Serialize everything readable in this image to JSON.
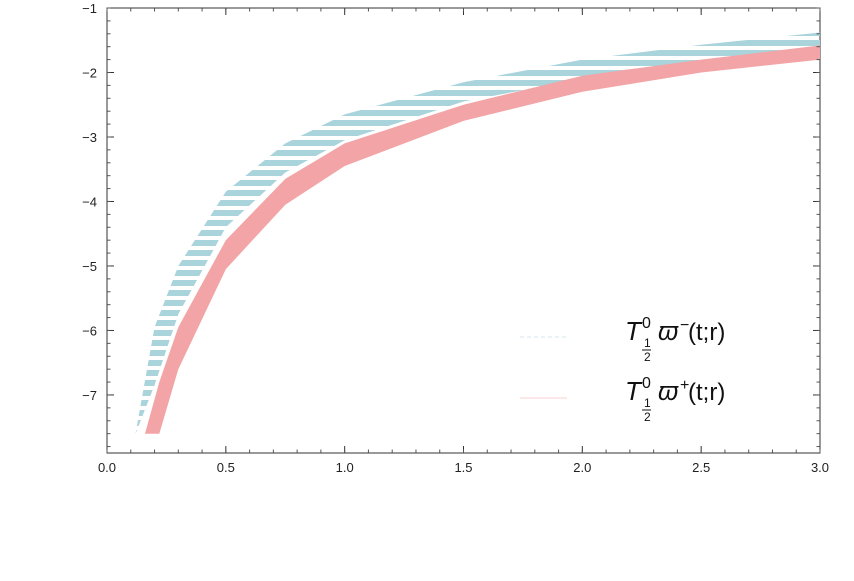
{
  "chart_data": {
    "type": "area",
    "title": "",
    "xlabel": "",
    "ylabel": "",
    "xlim": [
      0,
      3.0
    ],
    "ylim": [
      -7.9,
      -1.0
    ],
    "grid": false,
    "legend_position": "bottom-right",
    "x_ticks": [
      "0.0",
      "0.5",
      "1.0",
      "1.5",
      "2.0",
      "2.5",
      "3.0"
    ],
    "y_ticks": [
      "-1",
      "-2",
      "-3",
      "-4",
      "-5",
      "-6",
      "-7"
    ],
    "series": [
      {
        "legend_main": "T",
        "legend_sup": "0",
        "legend_sub_num": "1",
        "legend_sub_den": "2",
        "legend_omega": "ϖ",
        "legend_omega_sup": "−",
        "legend_args": "(t;r)",
        "color": "#a9d4dc",
        "style": "hatched",
        "band": [
          {
            "x": 0.12,
            "lower": -7.6,
            "upper": -7.6
          },
          {
            "x": 0.2,
            "lower": -6.85,
            "upper": -5.95
          },
          {
            "x": 0.3,
            "lower": -5.75,
            "upper": -5.0
          },
          {
            "x": 0.5,
            "lower": -4.4,
            "upper": -3.85
          },
          {
            "x": 0.75,
            "lower": -3.55,
            "upper": -3.1
          },
          {
            "x": 1.0,
            "lower": -3.05,
            "upper": -2.65
          },
          {
            "x": 1.5,
            "lower": -2.45,
            "upper": -2.15
          },
          {
            "x": 2.0,
            "lower": -2.1,
            "upper": -1.8
          },
          {
            "x": 2.5,
            "lower": -1.85,
            "upper": -1.57
          },
          {
            "x": 3.0,
            "lower": -1.65,
            "upper": -1.38
          }
        ]
      },
      {
        "legend_main": "T",
        "legend_sup": "0",
        "legend_sub_num": "1",
        "legend_sub_den": "2",
        "legend_omega": "ϖ",
        "legend_omega_sup": "+",
        "legend_args": "(t;r)",
        "color": "#f2a4a6",
        "style": "solid",
        "band": [
          {
            "x": 0.16,
            "lower": -7.6,
            "upper": -7.6
          },
          {
            "x": 0.22,
            "lower": -7.6,
            "upper": -6.8
          },
          {
            "x": 0.3,
            "lower": -6.6,
            "upper": -5.95
          },
          {
            "x": 0.5,
            "lower": -5.05,
            "upper": -4.6
          },
          {
            "x": 0.75,
            "lower": -4.05,
            "upper": -3.65
          },
          {
            "x": 1.0,
            "lower": -3.45,
            "upper": -3.1
          },
          {
            "x": 1.5,
            "lower": -2.75,
            "upper": -2.5
          },
          {
            "x": 2.0,
            "lower": -2.3,
            "upper": -2.05
          },
          {
            "x": 2.5,
            "lower": -2.0,
            "upper": -1.8
          },
          {
            "x": 3.0,
            "lower": -1.8,
            "upper": -1.58
          }
        ]
      }
    ]
  }
}
